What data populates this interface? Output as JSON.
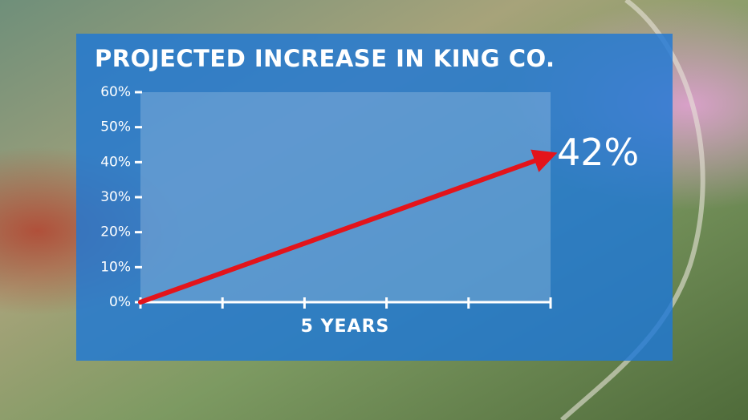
{
  "chart_data": {
    "type": "line",
    "title": "PROJECTED INCREASE IN KING CO.",
    "xlabel": "5 YEARS",
    "x": [
      0,
      5
    ],
    "values": [
      0,
      42
    ],
    "value_labels": [
      null,
      "42%"
    ],
    "color": "#e3141b",
    "xlim": [
      0,
      5
    ],
    "xticks": [
      0,
      1,
      2,
      3,
      4,
      5
    ],
    "ylim": [
      0,
      60
    ],
    "yticks": [
      {
        "value": 0,
        "label": "0%"
      },
      {
        "value": 10,
        "label": "10%"
      },
      {
        "value": 20,
        "label": "20%"
      },
      {
        "value": 30,
        "label": "30%"
      },
      {
        "value": 40,
        "label": "40%"
      },
      {
        "value": 50,
        "label": "50%"
      },
      {
        "value": 60,
        "label": "60%"
      }
    ]
  }
}
